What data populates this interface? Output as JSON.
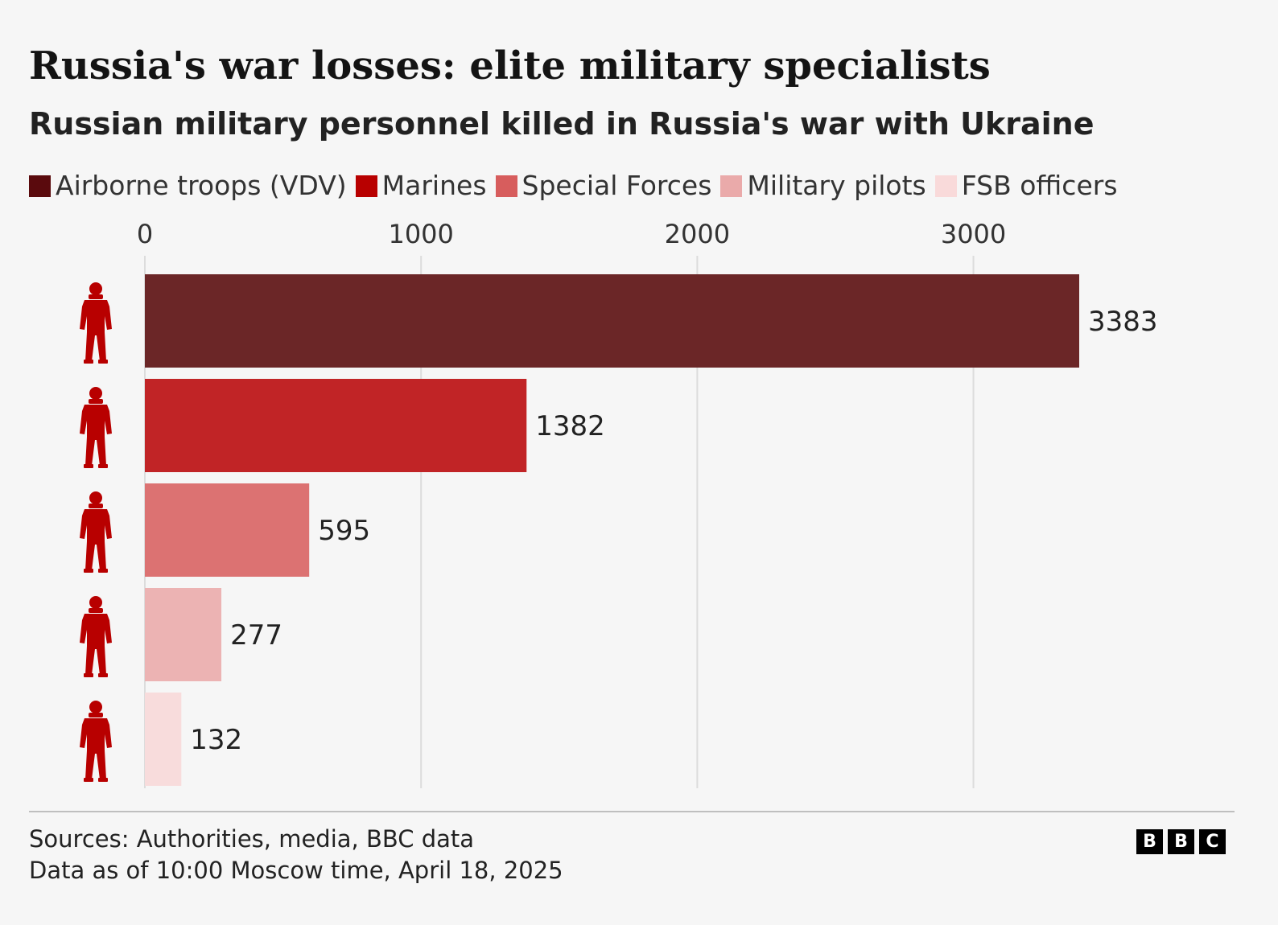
{
  "header": {
    "title": "Russia's war losses: elite military specialists",
    "subtitle": "Russian military personnel killed in Russia's war with Ukraine"
  },
  "legend": [
    {
      "label": "Airborne troops (VDV)",
      "color": "#5a0a0d"
    },
    {
      "label": "Marines",
      "color": "#b80000"
    },
    {
      "label": "Special Forces",
      "color": "#d75d5d"
    },
    {
      "label": "Military pilots",
      "color": "#eaaaaa"
    },
    {
      "label": "FSB officers",
      "color": "#f9dada"
    }
  ],
  "chart_data": {
    "type": "bar",
    "orientation": "horizontal",
    "categories": [
      "Airborne troops (VDV)",
      "Marines",
      "Special Forces",
      "Military pilots",
      "FSB officers"
    ],
    "values": [
      3383,
      1382,
      595,
      277,
      132
    ],
    "colors": [
      "#6b2627",
      "#c12426",
      "#dc7272",
      "#ecb3b3",
      "#f8dcdc"
    ],
    "value_labels": [
      "3383",
      "1382",
      "595",
      "277",
      "132"
    ],
    "x_ticks": [
      0,
      1000,
      2000,
      3000
    ],
    "x_tick_labels": [
      "0",
      "1000",
      "2000",
      "3000"
    ],
    "xlim": [
      0,
      3383
    ],
    "x_axis_position": "top",
    "grid": "vertical",
    "legend": "top",
    "row_icon": "soldier-silhouette-icon",
    "icon_color": "#b80000"
  },
  "footer": {
    "source_line_1": "Sources: Authorities, media, BBC data",
    "source_line_2": "Data as of 10:00 Moscow time, April 18, 2025",
    "logo_letters": [
      "B",
      "B",
      "C"
    ]
  }
}
